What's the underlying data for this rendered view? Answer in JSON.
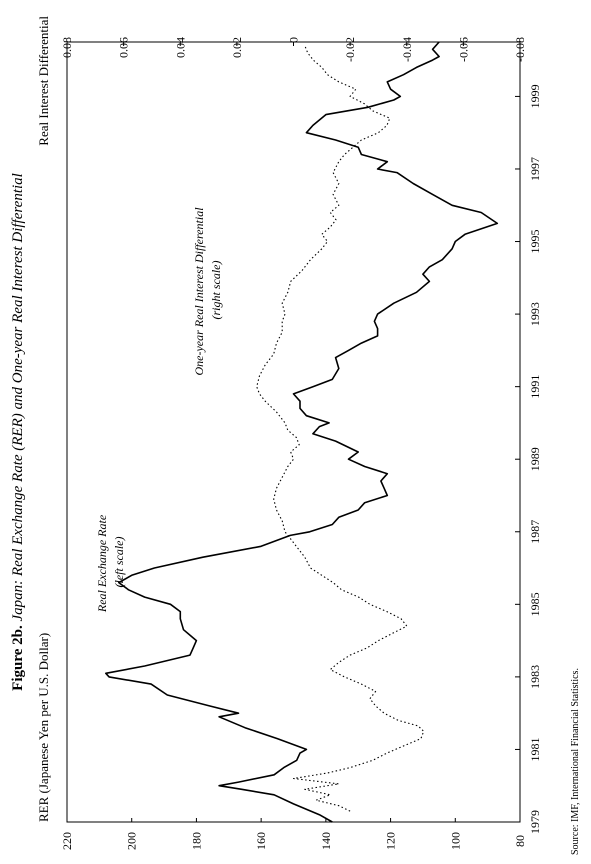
{
  "chart_data": {
    "type": "line",
    "title": {
      "prefix": "Figure 2b.",
      "text": " Japan: Real Exchange Rate (RER) and One-year Real Interest Differential"
    },
    "left_axis": {
      "label": "RER (Japanese Yen per U.S. Dollar)",
      "ylim": [
        80,
        220
      ],
      "ticks": [
        "220",
        "200",
        "180",
        "160",
        "140",
        "120",
        "100",
        "80"
      ],
      "tick_values": [
        220,
        200,
        180,
        160,
        140,
        120,
        100,
        80
      ]
    },
    "right_axis": {
      "label": "Real Interest Differential",
      "ylim": [
        -0.08,
        0.08
      ],
      "ticks": [
        "0.08",
        "0.06",
        "0.04",
        "0.02",
        "0",
        "-0.02",
        "-0.04",
        "-0.06",
        "-0.08"
      ],
      "tick_values": [
        0.08,
        0.06,
        0.04,
        0.02,
        0,
        -0.02,
        -0.04,
        -0.06,
        -0.08
      ]
    },
    "x_axis": {
      "range": [
        1979,
        2000.5
      ],
      "ticks": [
        "1979",
        "1981",
        "1983",
        "1985",
        "1987",
        "1989",
        "1991",
        "1993",
        "1995",
        "1997",
        "1999"
      ],
      "tick_values": [
        1979,
        1981,
        1983,
        1985,
        1987,
        1989,
        1991,
        1993,
        1995,
        1997,
        1999
      ]
    },
    "grid": false,
    "series": [
      {
        "name": "Real Exchange Rate",
        "axis": "left",
        "style": "solid",
        "annotation": [
          "Real Exchange Rate",
          "(left scale)"
        ],
        "points": [
          [
            1979.0,
            138
          ],
          [
            1979.2,
            142
          ],
          [
            1979.5,
            150
          ],
          [
            1979.75,
            156
          ],
          [
            1979.9,
            166
          ],
          [
            1980.0,
            173
          ],
          [
            1980.1,
            167
          ],
          [
            1980.3,
            156
          ],
          [
            1980.5,
            153
          ],
          [
            1980.7,
            149
          ],
          [
            1980.9,
            148
          ],
          [
            1981.0,
            146
          ],
          [
            1981.3,
            155
          ],
          [
            1981.6,
            165
          ],
          [
            1981.9,
            173
          ],
          [
            1982.0,
            167
          ],
          [
            1982.2,
            176
          ],
          [
            1982.5,
            189
          ],
          [
            1982.8,
            194
          ],
          [
            1983.0,
            207
          ],
          [
            1983.1,
            208
          ],
          [
            1983.3,
            196
          ],
          [
            1983.6,
            182
          ],
          [
            1983.8,
            181
          ],
          [
            1984.0,
            180
          ],
          [
            1984.3,
            184
          ],
          [
            1984.6,
            185
          ],
          [
            1984.8,
            185
          ],
          [
            1985.0,
            188
          ],
          [
            1985.2,
            196
          ],
          [
            1985.4,
            201
          ],
          [
            1985.6,
            204
          ],
          [
            1985.8,
            200
          ],
          [
            1986.0,
            193
          ],
          [
            1986.3,
            178
          ],
          [
            1986.6,
            160
          ],
          [
            1986.9,
            151
          ],
          [
            1987.0,
            145
          ],
          [
            1987.2,
            138
          ],
          [
            1987.4,
            136
          ],
          [
            1987.6,
            130
          ],
          [
            1987.8,
            128
          ],
          [
            1988.0,
            121
          ],
          [
            1988.2,
            122
          ],
          [
            1988.4,
            123
          ],
          [
            1988.6,
            121
          ],
          [
            1988.8,
            128
          ],
          [
            1989.0,
            133
          ],
          [
            1989.2,
            130
          ],
          [
            1989.5,
            137
          ],
          [
            1989.7,
            144
          ],
          [
            1989.9,
            142
          ],
          [
            1990.0,
            139
          ],
          [
            1990.2,
            146
          ],
          [
            1990.4,
            148
          ],
          [
            1990.6,
            148
          ],
          [
            1990.8,
            150
          ],
          [
            1991.0,
            144
          ],
          [
            1991.2,
            138
          ],
          [
            1991.5,
            136
          ],
          [
            1991.8,
            137
          ],
          [
            1992.0,
            133
          ],
          [
            1992.2,
            129
          ],
          [
            1992.4,
            124
          ],
          [
            1992.6,
            124
          ],
          [
            1992.8,
            125
          ],
          [
            1993.0,
            124
          ],
          [
            1993.3,
            119
          ],
          [
            1993.6,
            112
          ],
          [
            1993.9,
            108
          ],
          [
            1994.1,
            110
          ],
          [
            1994.3,
            108
          ],
          [
            1994.5,
            104
          ],
          [
            1994.8,
            101
          ],
          [
            1995.0,
            100
          ],
          [
            1995.2,
            97
          ],
          [
            1995.5,
            87
          ],
          [
            1995.8,
            92
          ],
          [
            1996.0,
            101
          ],
          [
            1996.3,
            107
          ],
          [
            1996.6,
            113
          ],
          [
            1996.9,
            118
          ],
          [
            1997.0,
            124
          ],
          [
            1997.2,
            121
          ],
          [
            1997.4,
            129
          ],
          [
            1997.6,
            130
          ],
          [
            1997.8,
            137
          ],
          [
            1998.0,
            146
          ],
          [
            1998.2,
            144
          ],
          [
            1998.5,
            140
          ],
          [
            1998.7,
            127
          ],
          [
            1998.9,
            119
          ],
          [
            1999.0,
            117
          ],
          [
            1999.2,
            120
          ],
          [
            1999.4,
            121
          ],
          [
            1999.6,
            116
          ],
          [
            1999.8,
            112
          ],
          [
            2000.0,
            107
          ],
          [
            2000.1,
            105
          ],
          [
            2000.3,
            107
          ],
          [
            2000.5,
            105
          ]
        ]
      },
      {
        "name": "One-year Real Interest Differential",
        "axis": "right",
        "style": "dotted",
        "annotation": [
          "One-year Real Interest Differential",
          "(right scale)"
        ],
        "points": [
          [
            1979.3,
            -0.02
          ],
          [
            1979.45,
            -0.016
          ],
          [
            1979.6,
            -0.008
          ],
          [
            1979.75,
            -0.013
          ],
          [
            1979.9,
            -0.004
          ],
          [
            1980.05,
            -0.016
          ],
          [
            1980.2,
            0.0
          ],
          [
            1980.35,
            -0.012
          ],
          [
            1980.5,
            -0.02
          ],
          [
            1980.7,
            -0.028
          ],
          [
            1980.9,
            -0.033
          ],
          [
            1981.1,
            -0.039
          ],
          [
            1981.3,
            -0.045
          ],
          [
            1981.5,
            -0.046
          ],
          [
            1981.65,
            -0.044
          ],
          [
            1981.8,
            -0.037
          ],
          [
            1982.0,
            -0.032
          ],
          [
            1982.2,
            -0.029
          ],
          [
            1982.4,
            -0.027
          ],
          [
            1982.6,
            -0.029
          ],
          [
            1982.8,
            -0.024
          ],
          [
            1983.0,
            -0.018
          ],
          [
            1983.2,
            -0.013
          ],
          [
            1983.4,
            -0.016
          ],
          [
            1983.6,
            -0.02
          ],
          [
            1983.8,
            -0.026
          ],
          [
            1984.0,
            -0.03
          ],
          [
            1984.2,
            -0.035
          ],
          [
            1984.4,
            -0.04
          ],
          [
            1984.6,
            -0.038
          ],
          [
            1984.8,
            -0.033
          ],
          [
            1985.0,
            -0.027
          ],
          [
            1985.2,
            -0.023
          ],
          [
            1985.4,
            -0.017
          ],
          [
            1985.6,
            -0.014
          ],
          [
            1985.8,
            -0.01
          ],
          [
            1986.0,
            -0.006
          ],
          [
            1986.3,
            -0.004
          ],
          [
            1986.6,
            -0.001
          ],
          [
            1986.8,
            0.001
          ],
          [
            1987.0,
            0.003
          ],
          [
            1987.3,
            0.004
          ],
          [
            1987.6,
            0.006
          ],
          [
            1987.9,
            0.007
          ],
          [
            1988.2,
            0.006
          ],
          [
            1988.5,
            0.004
          ],
          [
            1988.8,
            0.002
          ],
          [
            1989.0,
            0.0
          ],
          [
            1989.2,
            0.001
          ],
          [
            1989.4,
            -0.002
          ],
          [
            1989.6,
            -0.001
          ],
          [
            1989.8,
            0.002
          ],
          [
            1990.0,
            0.003
          ],
          [
            1990.3,
            0.006
          ],
          [
            1990.6,
            0.01
          ],
          [
            1990.8,
            0.012
          ],
          [
            1991.0,
            0.013
          ],
          [
            1991.3,
            0.012
          ],
          [
            1991.6,
            0.01
          ],
          [
            1991.9,
            0.007
          ],
          [
            1992.2,
            0.006
          ],
          [
            1992.5,
            0.004
          ],
          [
            1992.8,
            0.004
          ],
          [
            1993.0,
            0.003
          ],
          [
            1993.3,
            0.004
          ],
          [
            1993.6,
            0.002
          ],
          [
            1993.9,
            0.001
          ],
          [
            1994.2,
            -0.003
          ],
          [
            1994.5,
            -0.006
          ],
          [
            1994.8,
            -0.01
          ],
          [
            1995.0,
            -0.012
          ],
          [
            1995.2,
            -0.01
          ],
          [
            1995.4,
            -0.013
          ],
          [
            1995.6,
            -0.015
          ],
          [
            1995.8,
            -0.013
          ],
          [
            1996.0,
            -0.016
          ],
          [
            1996.3,
            -0.014
          ],
          [
            1996.6,
            -0.016
          ],
          [
            1996.9,
            -0.014
          ],
          [
            1997.2,
            -0.016
          ],
          [
            1997.4,
            -0.018
          ],
          [
            1997.6,
            -0.021
          ],
          [
            1997.8,
            -0.024
          ],
          [
            1998.0,
            -0.03
          ],
          [
            1998.2,
            -0.033
          ],
          [
            1998.4,
            -0.034
          ],
          [
            1998.6,
            -0.028
          ],
          [
            1998.8,
            -0.025
          ],
          [
            1999.0,
            -0.02
          ],
          [
            1999.2,
            -0.022
          ],
          [
            1999.4,
            -0.016
          ],
          [
            1999.6,
            -0.012
          ],
          [
            1999.8,
            -0.01
          ],
          [
            2000.0,
            -0.007
          ],
          [
            2000.2,
            -0.005
          ],
          [
            2000.4,
            -0.004
          ]
        ]
      }
    ],
    "source": "Source: IMF, International Financial Statistics."
  }
}
